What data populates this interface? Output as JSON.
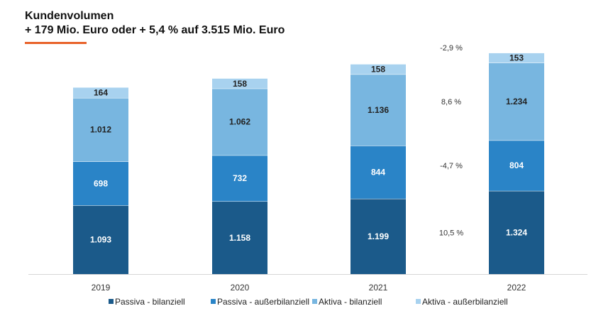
{
  "title": "Kundenvolumen",
  "subtitle": "+ 179 Mio. Euro oder + 5,4 % auf 3.515 Mio. Euro",
  "colors": {
    "accent": "#e8622a",
    "passiva_bilanziell": "#1b5a8a",
    "passiva_ausserbilanziell": "#2a84c7",
    "aktiva_bilanziell": "#78b6e0",
    "aktiva_ausserbilanziell": "#a8d2ef"
  },
  "chart_data": {
    "type": "bar",
    "stacked": true,
    "categories": [
      "2019",
      "2020",
      "2021",
      "2022"
    ],
    "series": [
      {
        "name": "Passiva - bilanziell",
        "values": [
          1093,
          1158,
          1199,
          1324
        ],
        "labels": [
          "1.093",
          "1.158",
          "1.199",
          "1.324"
        ],
        "color": "#1b5a8a",
        "label_color": "#ffffff"
      },
      {
        "name": "Passiva - außerbilanziell",
        "values": [
          698,
          732,
          844,
          804
        ],
        "labels": [
          "698",
          "732",
          "844",
          "804"
        ],
        "color": "#2a84c7",
        "label_color": "#ffffff"
      },
      {
        "name": "Aktiva - bilanziell",
        "values": [
          1012,
          1062,
          1136,
          1234
        ],
        "labels": [
          "1.012",
          "1.062",
          "1.136",
          "1.234"
        ],
        "color": "#78b6e0",
        "label_color": "#222222"
      },
      {
        "name": "Aktiva - außerbilanziell",
        "values": [
          164,
          158,
          158,
          153
        ],
        "labels": [
          "164",
          "158",
          "158",
          "153"
        ],
        "color": "#a8d2ef",
        "label_color": "#222222"
      }
    ],
    "changes": [
      "10,5 %",
      "-4,7 %",
      "8,6 %",
      "-2,9 %"
    ],
    "legend_position": "bottom",
    "grid": false
  }
}
